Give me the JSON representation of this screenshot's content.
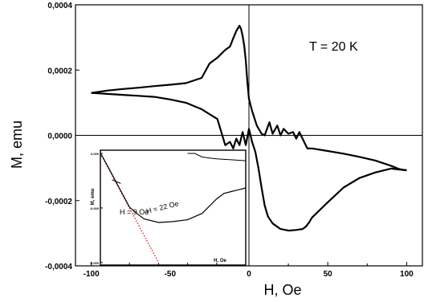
{
  "chart_data": {
    "type": "line",
    "title": "",
    "xlabel": "H, Oe",
    "ylabel": "M, emu",
    "xlim": [
      -110,
      110
    ],
    "ylim": [
      -0.0004,
      0.0004
    ],
    "grid": false,
    "x_ticks": [
      {
        "value": -100,
        "label": "-100"
      },
      {
        "value": -50,
        "label": "-50"
      },
      {
        "value": 0,
        "label": "0"
      },
      {
        "value": 50,
        "label": "50"
      },
      {
        "value": 100,
        "label": "100"
      }
    ],
    "y_ticks": [
      {
        "value": 0.0004,
        "label": "0,0004"
      },
      {
        "value": 0.0002,
        "label": "0,0002"
      },
      {
        "value": 0.0,
        "label": "0,0000"
      },
      {
        "value": -0.0002,
        "label": "-0,0002"
      },
      {
        "value": -0.0004,
        "label": "-0,0004"
      }
    ],
    "annotation": "T = 20 K",
    "series": [
      {
        "x": [
          -100,
          -90,
          -80,
          -70,
          -60,
          -50,
          -40,
          -30,
          -25,
          -20,
          -15,
          -12,
          -10,
          -8,
          -6,
          -5,
          -4,
          -3,
          -2,
          -1,
          0,
          2,
          5,
          8,
          10,
          13,
          15,
          18,
          20,
          22,
          25,
          28,
          30,
          32,
          35,
          37,
          40,
          50,
          60,
          70,
          80,
          90,
          95,
          98,
          100
        ],
        "y": [
          0.00013,
          0.000137,
          0.000142,
          0.000146,
          0.000151,
          0.000155,
          0.00016,
          0.000176,
          0.00022,
          0.000238,
          0.000262,
          0.000272,
          0.000297,
          0.00032,
          0.000336,
          0.000326,
          0.000305,
          0.000275,
          0.000228,
          0.000165,
          0.000112,
          7.5e-05,
          3e-05,
          5e-06,
          0.0,
          4e-05,
          5e-06,
          3e-05,
          0.0,
          2e-05,
          5e-06,
          1e-05,
          -1e-05,
          1e-05,
          -2e-05,
          -4e-05,
          -4e-05,
          -4.8e-05,
          -5.6e-05,
          -6.6e-05,
          -7.7e-05,
          -9.3e-05,
          -0.000103,
          -0.000106,
          -0.000107
        ]
      },
      {
        "x": [
          100,
          90,
          80,
          70,
          60,
          50,
          40,
          38,
          36,
          34,
          30,
          25,
          20,
          15,
          12,
          10,
          8,
          6,
          4,
          2,
          1,
          0,
          -2,
          -4,
          -6,
          -8,
          -10,
          -12,
          -15,
          -20,
          -30,
          -40,
          -50,
          -60,
          -70,
          -80,
          -90,
          -100
        ],
        "y": [
          -0.000107,
          -0.000102,
          -0.000114,
          -0.000131,
          -0.00016,
          -0.000205,
          -0.000252,
          -0.000268,
          -0.00028,
          -0.000287,
          -0.00029,
          -0.000292,
          -0.000287,
          -0.00027,
          -0.000248,
          -0.000215,
          -0.00016,
          -0.0001,
          -5e-05,
          -2e-05,
          0.0,
          2e-05,
          -3e-05,
          1e-05,
          -3e-05,
          -1e-05,
          -4e-05,
          -2e-05,
          -3e-05,
          5e-05,
          8e-05,
          0.0001,
          0.00011,
          0.000118,
          0.000121,
          0.000124,
          0.000127,
          0.00013
        ]
      }
    ],
    "inset": {
      "xlabel": "H, Oe",
      "ylabel": "M, emu",
      "y_tick_labels": [
        "0,000",
        "-0,000",
        "-0,000"
      ],
      "labels": [
        "H  = 9 Oe",
        "H   = 22 Oe"
      ],
      "curves": [
        {
          "x": [
            -100,
            -98,
            -96,
            -94,
            -92,
            -90,
            -88,
            -86,
            -84,
            -82,
            -80,
            -75,
            -70,
            -60,
            -50,
            -40,
            -30,
            -20,
            -15,
            -10,
            -5,
            0
          ],
          "y": [
            0.0,
            -0.05,
            -0.11,
            -0.17,
            -0.23,
            -0.29,
            -0.35,
            -0.41,
            -0.47,
            -0.53,
            -0.59,
            -0.66,
            -0.72,
            -0.76,
            -0.75,
            -0.73,
            -0.66,
            -0.5,
            -0.44,
            -0.42,
            -0.4,
            -0.38
          ]
        },
        {
          "x": [
            -40,
            -35,
            -30,
            -25,
            -20,
            -15,
            -10,
            -5,
            0
          ],
          "y": [
            0.0,
            0.0,
            -0.04,
            -0.05,
            -0.06,
            -0.065,
            -0.07,
            -0.075,
            -0.08
          ]
        }
      ],
      "linear_fit": {
        "x": [
          -100,
          -60
        ],
        "y": [
          0.0,
          -1.2
        ]
      }
    }
  }
}
